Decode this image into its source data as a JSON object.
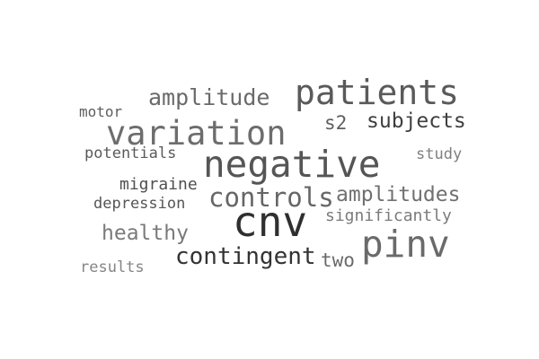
{
  "word_cloud": {
    "words": [
      {
        "text": "patients",
        "color": "#5a5a5a",
        "weight": 2
      },
      {
        "text": "amplitude",
        "color": "#6a6a6a",
        "weight": 2
      },
      {
        "text": "motor",
        "color": "#5e5e5e",
        "weight": 1
      },
      {
        "text": "subjects",
        "color": "#3f3f3f",
        "weight": 2
      },
      {
        "text": "s2",
        "color": "#5f5f5f",
        "weight": 1
      },
      {
        "text": "variation",
        "color": "#6d6d6d",
        "weight": 3
      },
      {
        "text": "potentials",
        "color": "#5a5a5a",
        "weight": 1
      },
      {
        "text": "negative",
        "color": "#555555",
        "weight": 4
      },
      {
        "text": "study",
        "color": "#808080",
        "weight": 1
      },
      {
        "text": "migraine",
        "color": "#4f4f4f",
        "weight": 1
      },
      {
        "text": "controls",
        "color": "#666666",
        "weight": 2
      },
      {
        "text": "amplitudes",
        "color": "#707070",
        "weight": 2
      },
      {
        "text": "depression",
        "color": "#555555",
        "weight": 1
      },
      {
        "text": "significantly",
        "color": "#7b7b7b",
        "weight": 1
      },
      {
        "text": "cnv",
        "color": "#2f2f2f",
        "weight": 5
      },
      {
        "text": "healthy",
        "color": "#7a7a7a",
        "weight": 1
      },
      {
        "text": "pinv",
        "color": "#6a6a6a",
        "weight": 4
      },
      {
        "text": "contingent",
        "color": "#333333",
        "weight": 2
      },
      {
        "text": "two",
        "color": "#6a6a6a",
        "weight": 1
      },
      {
        "text": "results",
        "color": "#858585",
        "weight": 1
      }
    ]
  }
}
